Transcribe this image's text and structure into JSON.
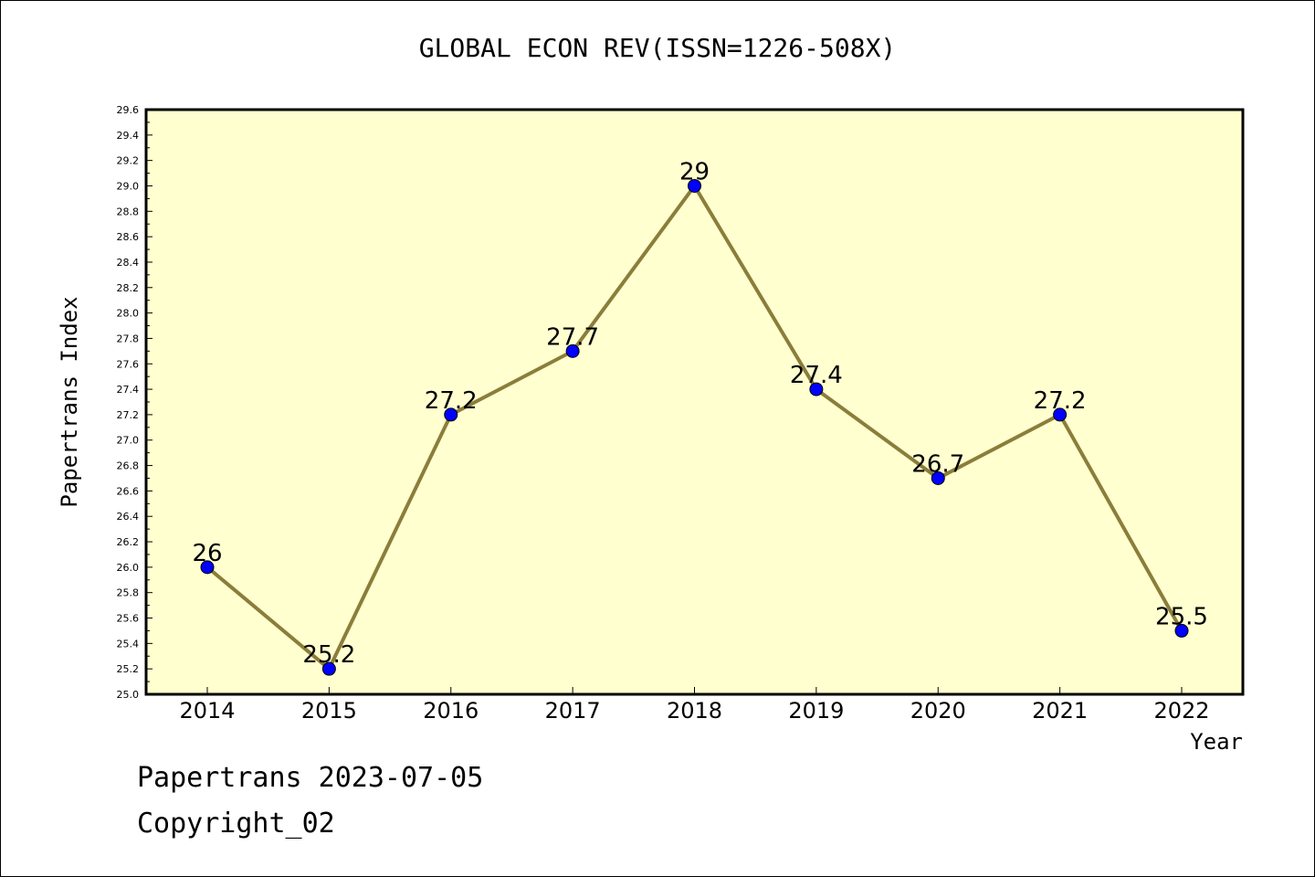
{
  "chart_data": {
    "type": "line",
    "title": "GLOBAL ECON REV(ISSN=1226-508X)",
    "xlabel": "Year",
    "ylabel": "Papertrans Index",
    "categories": [
      "2014",
      "2015",
      "2016",
      "2017",
      "2018",
      "2019",
      "2020",
      "2021",
      "2022"
    ],
    "values": [
      26,
      25.2,
      27.2,
      27.7,
      29,
      27.4,
      26.7,
      27.2,
      25.5
    ],
    "data_labels": [
      "26",
      "25.2",
      "27.2",
      "27.7",
      "29",
      "27.4",
      "26.7",
      "27.2",
      "25.5"
    ],
    "ylim": [
      25.0,
      29.6
    ],
    "yticks": [
      "25.0",
      "25.2",
      "25.4",
      "25.6",
      "25.8",
      "26.0",
      "26.2",
      "26.4",
      "26.6",
      "26.8",
      "27.0",
      "27.2",
      "27.4",
      "27.6",
      "27.8",
      "28.0",
      "28.2",
      "28.4",
      "28.6",
      "28.8",
      "29.0",
      "29.2",
      "29.4",
      "29.6"
    ],
    "grid": false,
    "colors": {
      "line": "#8B7D3A",
      "marker": "#0000FF",
      "plot_background": "#FFFFD0"
    }
  },
  "footer": {
    "line1": "Papertrans 2023-07-05",
    "line2": "Copyright_02"
  }
}
